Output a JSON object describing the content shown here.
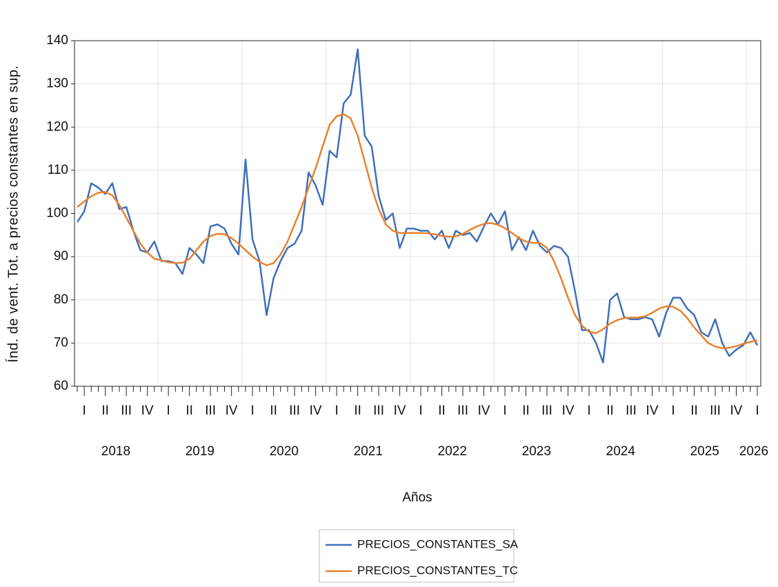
{
  "chart_data": {
    "type": "line",
    "y_label": "Índ. de vent. Tot. a precios constantes en sup.",
    "x_label": "Años",
    "categories": [
      null,
      "I",
      null,
      null,
      "II",
      null,
      null,
      "III",
      null,
      null,
      "IV",
      null,
      null,
      "I",
      null,
      null,
      "II",
      null,
      null,
      "III",
      null,
      null,
      "IV",
      null,
      null,
      "I",
      null,
      null,
      "II",
      null,
      null,
      "III",
      null,
      null,
      "IV",
      null,
      null,
      "I",
      null,
      null,
      "II",
      null,
      null,
      "III",
      null,
      null,
      "IV",
      null,
      null,
      "I",
      null,
      null,
      "II",
      null,
      null,
      "III",
      null,
      null,
      "IV",
      null,
      null,
      "I",
      null,
      null,
      "II",
      null,
      null,
      "III",
      null,
      null,
      "IV",
      null,
      null,
      "I",
      null,
      null,
      "II",
      null,
      null,
      "III",
      null,
      null,
      "IV",
      null,
      null,
      "I",
      null,
      null,
      "II",
      null,
      null,
      "III",
      null,
      null,
      "IV",
      null,
      null,
      "I"
    ],
    "years": [
      "2018",
      "2019",
      "2020",
      "2021",
      "2022",
      "2023",
      "2024",
      "2025",
      "2026"
    ],
    "ylim": [
      60,
      140
    ],
    "yticks": [
      60,
      70,
      80,
      90,
      100,
      110,
      120,
      130,
      140
    ],
    "grid": true,
    "legend": "bottom",
    "series": [
      {
        "name": "PRECIOS_CONSTANTES_SA",
        "color": "#3f6fb8",
        "values": [
          98,
          100.5,
          107,
          106,
          104.5,
          107,
          101,
          101.5,
          96,
          91.5,
          91,
          93.5,
          89,
          89,
          88.5,
          86,
          92,
          90.5,
          88.5,
          97,
          97.5,
          96.5,
          93,
          90.5,
          112.5,
          94,
          89,
          76.5,
          85,
          89,
          92,
          93,
          96,
          109.5,
          106.5,
          102,
          114.5,
          113,
          125.5,
          127.5,
          138,
          118,
          115.5,
          104,
          98.5,
          100,
          92,
          96.5,
          96.5,
          96,
          96,
          94,
          96,
          92,
          96,
          95,
          95.5,
          93.5,
          97,
          100,
          97.5,
          100.5,
          91.5,
          94.5,
          91.5,
          96,
          92.5,
          91,
          92.5,
          92,
          90,
          82,
          73,
          73,
          70,
          65.5,
          80,
          81.5,
          76,
          75.5,
          75.5,
          76,
          75.5,
          71.5,
          77,
          80.5,
          80.5,
          78,
          76.5,
          72.5,
          71.5,
          75.5,
          70,
          67,
          68.5,
          69.5,
          72.5,
          69.5
        ]
      },
      {
        "name": "PRECIOS_CONSTANTES_TC",
        "color": "#e8822e",
        "values": [
          101.5,
          102.8,
          104,
          104.8,
          105,
          104.2,
          102,
          99,
          96,
          93,
          91,
          89.5,
          89.2,
          88.7,
          88.5,
          88.6,
          89.5,
          91.5,
          93.5,
          94.8,
          95.3,
          95.2,
          94.3,
          93,
          91.5,
          90,
          88.8,
          88,
          88.5,
          90.5,
          93.5,
          97.5,
          101.5,
          106,
          110.5,
          115.5,
          120.5,
          122.5,
          123,
          122,
          118,
          112,
          106,
          101,
          97.5,
          96,
          95.5,
          95.5,
          95.5,
          95.5,
          95.4,
          95.2,
          94.8,
          94.6,
          94.7,
          95.3,
          96.2,
          97,
          97.6,
          97.8,
          97.4,
          96.6,
          95.5,
          94.3,
          93.5,
          93.2,
          93.2,
          92,
          89,
          85,
          80.5,
          76.5,
          74,
          72.6,
          72.3,
          73.2,
          74.5,
          75.3,
          75.8,
          75.9,
          75.9,
          76.2,
          77,
          78,
          78.5,
          78.4,
          77.5,
          75.8,
          73.6,
          71.8,
          70,
          69.2,
          68.8,
          68.9,
          69.3,
          69.8,
          70.3,
          70.6
        ]
      }
    ]
  }
}
